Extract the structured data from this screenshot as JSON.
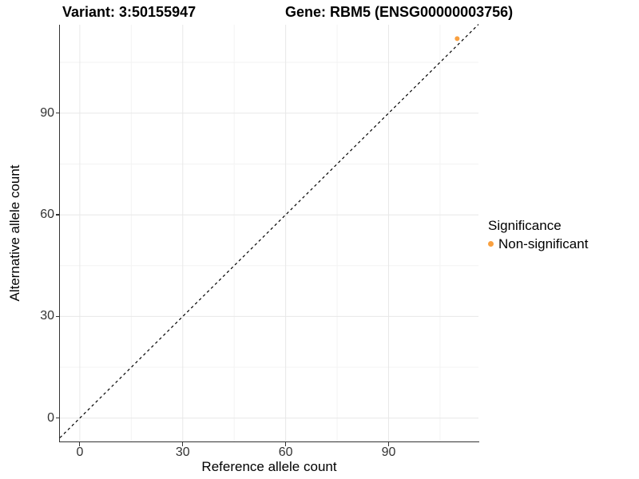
{
  "titles": {
    "variant": "Variant: 3:50155947",
    "gene": "Gene: RBM5 (ENSG00000003756)"
  },
  "chart_data": {
    "type": "scatter",
    "xlabel": "Reference allele count",
    "ylabel": "Alternative allele count",
    "x_ticks": [
      0,
      30,
      60,
      90
    ],
    "y_ticks": [
      0,
      30,
      60,
      90
    ],
    "minor_gridlines": [
      15,
      45,
      75,
      105
    ],
    "x_range": [
      -5.8,
      116.2
    ],
    "y_range": [
      -6.9,
      116.1
    ],
    "grid": "major+minor, light gray on white",
    "points": [
      {
        "x": 110,
        "y": 112,
        "series": "Non-significant"
      }
    ],
    "reference_line": {
      "description": "identity line y = x",
      "style": "dashed",
      "x1": -5.8,
      "y1": -5.8,
      "x2": 116.2,
      "y2": 116.2
    },
    "legend": {
      "title": "Significance",
      "position": "right",
      "items": [
        {
          "label": "Non-significant",
          "color": "#F9A03F"
        }
      ]
    }
  },
  "colors": {
    "background": "#FFFFFF",
    "point": "#F9A03F",
    "axis_line": "#333333",
    "tick_text": "#333333",
    "grid_major": "#E8E8E8",
    "grid_minor": "#F3F3F3",
    "reference_line": "#000000"
  }
}
